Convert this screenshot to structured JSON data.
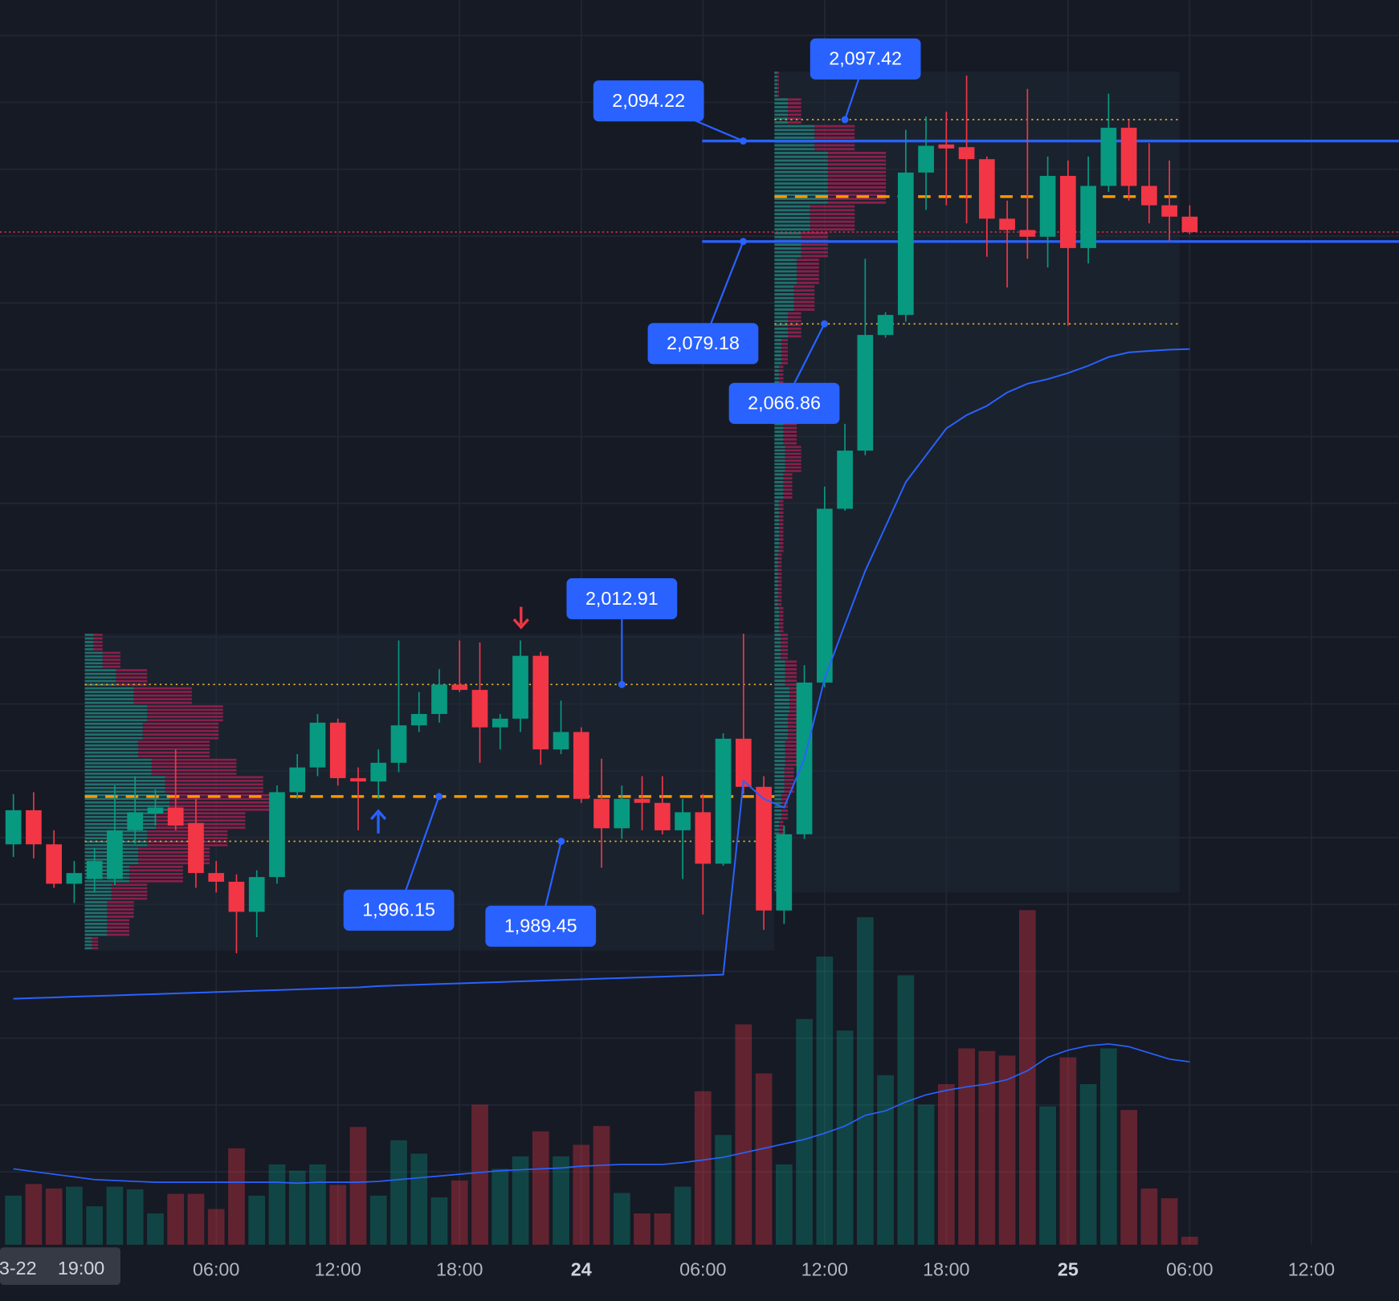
{
  "chart_data": {
    "type": "candlestick",
    "x": [
      0,
      1,
      2,
      3,
      4,
      5,
      6,
      7,
      8,
      9,
      10,
      11,
      12,
      13,
      14,
      15,
      16,
      17,
      18,
      19,
      20,
      21,
      22,
      23,
      24,
      25,
      26,
      27,
      28,
      29,
      30,
      31,
      32,
      33,
      34,
      35,
      36,
      37,
      38,
      39,
      40,
      41,
      42,
      43,
      44,
      45,
      46,
      47,
      48,
      49,
      50,
      51,
      52,
      53,
      54,
      55,
      56,
      57,
      58
    ],
    "open": [
      1989.0,
      1994.1,
      1989.0,
      1983.1,
      1983.8,
      1983.8,
      1991.1,
      1993.6,
      1994.5,
      1992.2,
      1984.7,
      1983.4,
      1978.9,
      1984.1,
      1996.8,
      2000.5,
      2007.2,
      1998.9,
      1998.4,
      2001.2,
      2006.8,
      2008.5,
      2012.9,
      2012.1,
      2006.5,
      2007.8,
      2017.2,
      2003.2,
      2005.8,
      1995.8,
      1991.4,
      1995.8,
      1995.2,
      1991.1,
      1993.8,
      1986.1,
      2004.8,
      1997.6,
      1979.1,
      1990.5,
      2013.2,
      2039.2,
      2047.9,
      2065.2,
      2068.2,
      2089.5,
      2093.7,
      2093.3,
      2091.5,
      2082.6,
      2080.9,
      2079.9,
      2089.0,
      2078.2,
      2087.5,
      2096.2,
      2087.5,
      2084.6,
      2082.9
    ],
    "high": [
      1996.5,
      1996.8,
      1991.1,
      1986.5,
      1988.5,
      1997.8,
      1999.2,
      1997.2,
      2003.2,
      1995.8,
      1986.5,
      1984.5,
      1985.1,
      1997.8,
      2002.5,
      2008.5,
      2007.8,
      2000.5,
      2003.2,
      2019.5,
      2011.8,
      2015.2,
      2019.5,
      2019.2,
      2008.5,
      2019.5,
      2017.8,
      2010.5,
      2006.5,
      2001.8,
      1997.8,
      1999.2,
      1999.2,
      1995.8,
      1996.5,
      2005.6,
      2020.5,
      1999.2,
      1991.8,
      2015.8,
      2042.5,
      2051.9,
      2076.6,
      2068.6,
      2095.9,
      2097.9,
      2098.6,
      2104.0,
      2091.9,
      2085.3,
      2102.0,
      2091.9,
      2091.3,
      2091.9,
      2101.3,
      2097.3,
      2093.9,
      2091.3,
      2084.6
    ],
    "low": [
      1987.1,
      1986.9,
      1982.5,
      1980.2,
      1981.8,
      1982.9,
      1989.1,
      1991.8,
      1991.1,
      1982.5,
      1981.8,
      1972.7,
      1975.1,
      1983.1,
      1995.8,
      1999.2,
      1997.8,
      1991.1,
      1995.8,
      1999.8,
      2005.8,
      2007.2,
      2011.8,
      2001.2,
      2003.2,
      2005.8,
      2000.9,
      2002.5,
      1995.2,
      1985.5,
      1989.8,
      1991.1,
      1990.5,
      1983.8,
      1978.5,
      1985.8,
      1996.5,
      1976.2,
      1977.1,
      1989.8,
      2012.5,
      2038.9,
      2047.2,
      2064.8,
      2067.2,
      2083.9,
      2084.6,
      2081.9,
      2076.9,
      2072.3,
      2076.6,
      2075.3,
      2066.6,
      2075.9,
      2086.6,
      2085.3,
      2081.9,
      2079.3,
      2080.3
    ],
    "close": [
      1994.1,
      1989.0,
      1983.1,
      1984.7,
      1986.5,
      1991.1,
      1993.8,
      1994.5,
      1991.8,
      1984.7,
      1983.4,
      1978.9,
      1984.1,
      1996.8,
      2000.5,
      2007.2,
      1998.9,
      1998.4,
      2001.2,
      2006.8,
      2008.5,
      2012.9,
      2012.1,
      2006.5,
      2007.8,
      2017.2,
      2003.2,
      2005.8,
      1995.8,
      1991.4,
      1995.8,
      1995.2,
      1991.1,
      1993.8,
      1986.1,
      2004.8,
      1997.6,
      1979.1,
      1990.5,
      2013.2,
      2039.2,
      2047.9,
      2065.2,
      2068.2,
      2089.5,
      2093.5,
      2093.1,
      2091.5,
      2082.6,
      2080.9,
      2079.9,
      2089.0,
      2078.2,
      2087.5,
      2096.2,
      2087.5,
      2084.6,
      2082.9,
      2080.6
    ],
    "vwap": [
      1965.9,
      1966.0,
      1966.1,
      1966.2,
      1966.3,
      1966.4,
      1966.5,
      1966.6,
      1966.7,
      1966.8,
      1966.9,
      1967.0,
      1967.1,
      1967.2,
      1967.3,
      1967.4,
      1967.5,
      1967.6,
      1967.8,
      1967.9,
      1968.0,
      1968.1,
      1968.2,
      1968.3,
      1968.4,
      1968.5,
      1968.6,
      1968.7,
      1968.8,
      1968.9,
      1969.0,
      1969.1,
      1969.2,
      1969.3,
      1969.4,
      1969.5,
      1998.5,
      1995.8,
      1994.5,
      2001.8,
      2013.8,
      2021.9,
      2029.9,
      2036.5,
      2043.2,
      2047.2,
      2051.2,
      2053.2,
      2054.6,
      2056.6,
      2057.9,
      2058.6,
      2059.5,
      2060.6,
      2061.9,
      2062.6,
      2062.8,
      2063.0,
      2063.1
    ],
    "volume": [
      55,
      68,
      63,
      65,
      43,
      65,
      62,
      35,
      57,
      57,
      40,
      108,
      55,
      90,
      83,
      90,
      67,
      132,
      55,
      117,
      102,
      53,
      72,
      157,
      85,
      99,
      127,
      99,
      112,
      133,
      58,
      35,
      35,
      65,
      172,
      123,
      247,
      192,
      90,
      253,
      323,
      240,
      367,
      190,
      302,
      157,
      180,
      220,
      217,
      212,
      375,
      155,
      210,
      180,
      220,
      151,
      63,
      52,
      9
    ],
    "volume_ma": [
      85,
      82,
      79,
      76,
      73,
      72,
      71,
      70,
      70,
      70,
      70,
      70,
      70,
      70,
      69,
      70,
      70,
      70,
      71,
      73,
      75,
      77,
      79,
      81,
      83,
      84,
      85,
      86,
      88,
      89,
      90,
      90,
      90,
      92,
      95,
      98,
      103,
      108,
      113,
      118,
      125,
      133,
      145,
      150,
      160,
      168,
      173,
      177,
      180,
      185,
      195,
      210,
      218,
      223,
      225,
      222,
      215,
      208,
      205
    ],
    "up_color": "#089981",
    "down_color": "#f23645",
    "line_color": "#2962ff",
    "xlim": [
      -0.66,
      68.32
    ],
    "ylim": [
      1929.1,
      2115.3
    ],
    "y2lim": [
      0,
      1395
    ],
    "yticks": [
      1940,
      1950,
      1960,
      1970,
      1980,
      1990,
      2000,
      2010,
      2020,
      2030,
      2040,
      2050,
      2060,
      2070,
      2080,
      2090,
      2100,
      2110
    ],
    "xticks": [
      {
        "value": 10,
        "label": "06:00"
      },
      {
        "value": 16,
        "label": "12:00"
      },
      {
        "value": 22,
        "label": "18:00"
      },
      {
        "value": 28,
        "label": "24"
      },
      {
        "value": 34,
        "label": "06:00"
      },
      {
        "value": 40,
        "label": "12:00"
      },
      {
        "value": 46,
        "label": "18:00"
      },
      {
        "value": 52,
        "label": "25"
      },
      {
        "value": 58,
        "label": "06:00"
      },
      {
        "value": 64,
        "label": "12:00"
      }
    ],
    "grid": true,
    "crosshair_label": {
      "date": "3-22",
      "time": "19:00"
    },
    "profiles": [
      {
        "bins": [
          2020.5,
          2017.8,
          2015.2,
          2012.5,
          2009.8,
          2007.2,
          2004.5,
          2001.8,
          1999.2,
          1996.5,
          1993.8,
          1991.1,
          1988.5,
          1985.8,
          1983.1,
          1980.5,
          1977.8,
          1975.1,
          1973.1
        ],
        "up": [
          10,
          20,
          35,
          55,
          70,
          65,
          60,
          75,
          90,
          95,
          80,
          70,
          60,
          50,
          30,
          25,
          25,
          8
        ],
        "down": [
          10,
          20,
          35,
          65,
          85,
          85,
          80,
          95,
          110,
          115,
          100,
          90,
          80,
          60,
          40,
          30,
          25,
          7
        ],
        "vah": {
          "value": 2012.91,
          "label": "2,012.91"
        },
        "poc": {
          "value": 1996.15,
          "label": "1,996.15"
        },
        "val": {
          "value": 1989.45,
          "label": "1,989.45"
        }
      },
      {
        "bins": [
          2104.6,
          2100.6,
          2096.6,
          2092.6,
          2088.6,
          2084.6,
          2080.6,
          2076.6,
          2072.6,
          2068.6,
          2064.6,
          2060.6,
          2056.6,
          2052.6,
          2048.6,
          2044.5,
          2040.5,
          2036.5,
          2032.5,
          2028.5,
          2024.5,
          2020.5,
          2016.5,
          2012.5,
          2008.5,
          2004.5,
          2000.5,
          1996.5,
          1992.5,
          1988.5,
          1984.5,
          1981.8
        ],
        "up": [
          3,
          15,
          45,
          60,
          60,
          40,
          30,
          25,
          22,
          15,
          8,
          5,
          5,
          10,
          12,
          10,
          5,
          5,
          4,
          4,
          5,
          7,
          12,
          17,
          15,
          12,
          11,
          8,
          5,
          3,
          2
        ],
        "down": [
          2,
          15,
          45,
          65,
          65,
          50,
          30,
          25,
          23,
          15,
          7,
          5,
          5,
          15,
          18,
          10,
          5,
          5,
          4,
          4,
          5,
          8,
          13,
          18,
          15,
          13,
          11,
          7,
          5,
          2,
          1
        ],
        "vah": {
          "value": 2097.42,
          "label": "2,097.42"
        },
        "poc": 2085.9,
        "val": {
          "value": 2066.86,
          "label": "2,066.86"
        }
      }
    ],
    "horizontal_lines": [
      {
        "value": 2094.22,
        "label": "2,094.22"
      },
      {
        "value": 2079.18,
        "label": "2,079.18"
      }
    ]
  }
}
